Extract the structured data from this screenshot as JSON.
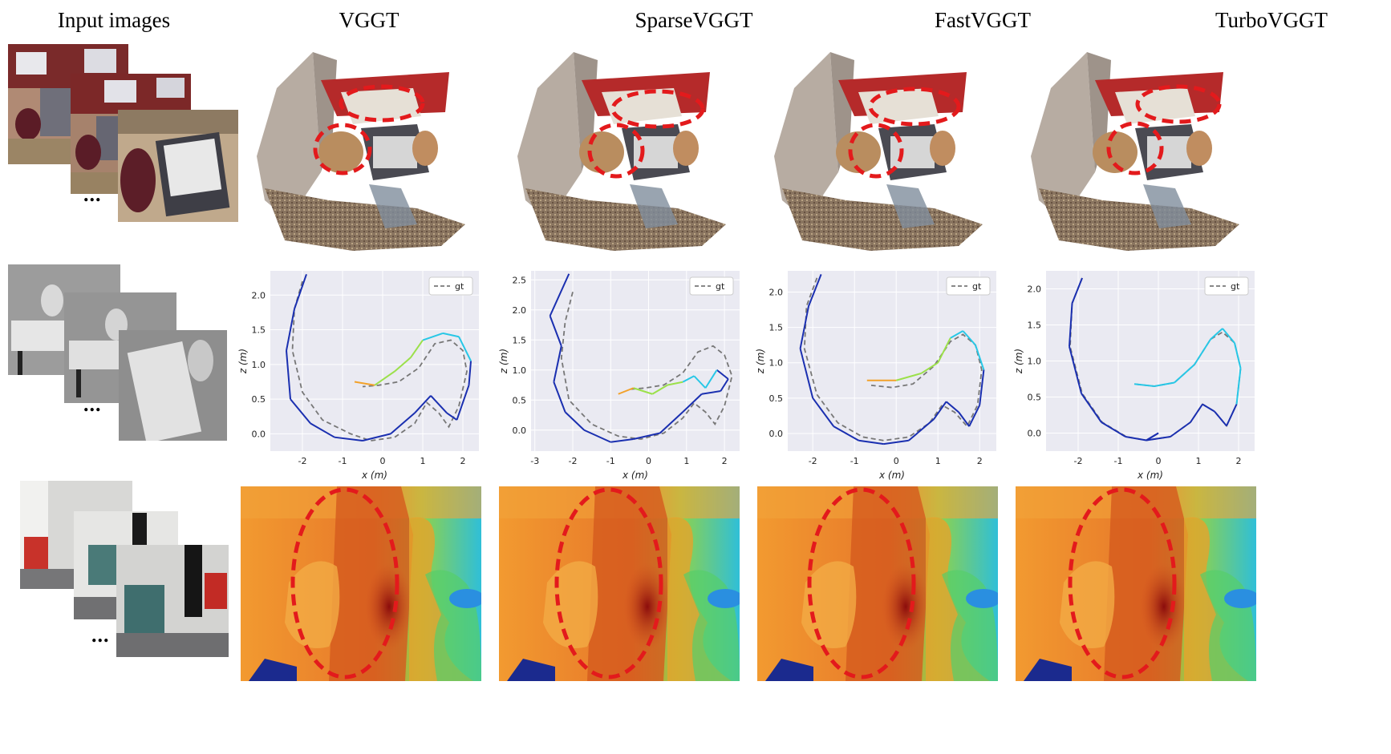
{
  "columns": {
    "input": "Input images",
    "vggt": "VGGT",
    "sparse": "SparseVGGT",
    "fast": "FastVGGT",
    "turbo": "TurboVGGT"
  },
  "ellipsis": "...",
  "colors": {
    "annotation": "#e31a1c",
    "plot_bg": "#eaeaf2",
    "gt": "#777777"
  },
  "chart_data": [
    {
      "type": "line",
      "method": "VGGT",
      "xlabel": "x (m)",
      "ylabel": "z (m)",
      "xlim": [
        -2.8,
        2.4
      ],
      "ylim": [
        -0.25,
        2.35
      ],
      "xticks": [
        -2,
        -1,
        0,
        1,
        2
      ],
      "yticks": [
        0.0,
        0.5,
        1.0,
        1.5,
        2.0
      ],
      "legend": "top-right",
      "grid": true,
      "series": [
        {
          "name": "gt",
          "style": "dashed",
          "x": [
            -2.0,
            -2.2,
            -2.25,
            -2.0,
            -1.5,
            -0.8,
            -0.3,
            0.3,
            0.8,
            1.1,
            1.4,
            1.65,
            1.9,
            2.1,
            2.0,
            1.7,
            1.3,
            0.9,
            0.4,
            -0.1,
            -0.5
          ],
          "y": [
            2.2,
            1.8,
            1.2,
            0.6,
            0.2,
            0.0,
            -0.1,
            -0.05,
            0.15,
            0.45,
            0.3,
            0.1,
            0.4,
            0.9,
            1.2,
            1.35,
            1.3,
            0.95,
            0.75,
            0.7,
            0.68
          ]
        },
        {
          "style": "colored",
          "x": [
            -1.9,
            -2.2,
            -2.4,
            -2.3,
            -1.8,
            -1.2,
            -0.5,
            0.2,
            0.8,
            1.2,
            1.6,
            1.85,
            2.15,
            2.2,
            1.9,
            1.5,
            1.0,
            0.7,
            0.3,
            -0.2,
            -0.7
          ],
          "y": [
            2.3,
            1.8,
            1.2,
            0.5,
            0.15,
            -0.05,
            -0.1,
            0.0,
            0.3,
            0.55,
            0.3,
            0.2,
            0.7,
            1.05,
            1.4,
            1.45,
            1.35,
            1.1,
            0.9,
            0.7,
            0.75
          ]
        }
      ]
    },
    {
      "type": "line",
      "method": "SparseVGGT",
      "xlabel": "x (m)",
      "ylabel": "z (m)",
      "xlim": [
        -3.1,
        2.4
      ],
      "ylim": [
        -0.35,
        2.65
      ],
      "xticks": [
        -3,
        -2,
        -1,
        0,
        1,
        2
      ],
      "yticks": [
        0.0,
        0.5,
        1.0,
        1.5,
        2.0,
        2.5
      ],
      "legend": "top-right",
      "grid": true,
      "series": [
        {
          "name": "gt",
          "style": "dashed",
          "x": [
            -2.0,
            -2.2,
            -2.3,
            -2.1,
            -1.5,
            -0.8,
            -0.2,
            0.4,
            0.9,
            1.2,
            1.5,
            1.75,
            2.0,
            2.2,
            2.0,
            1.7,
            1.3,
            0.9,
            0.4,
            -0.1,
            -0.5
          ],
          "y": [
            2.3,
            1.8,
            1.2,
            0.5,
            0.1,
            -0.1,
            -0.15,
            -0.05,
            0.2,
            0.45,
            0.3,
            0.1,
            0.4,
            0.9,
            1.25,
            1.4,
            1.3,
            0.95,
            0.75,
            0.7,
            0.68
          ]
        },
        {
          "style": "colored",
          "x": [
            -2.1,
            -2.6,
            -2.3,
            -2.5,
            -2.2,
            -1.7,
            -1.0,
            -0.4,
            0.3,
            0.9,
            1.4,
            1.9,
            2.1,
            1.8,
            1.5,
            1.2,
            0.9,
            0.5,
            0.1,
            -0.4,
            -0.8
          ],
          "y": [
            2.6,
            1.9,
            1.4,
            0.8,
            0.3,
            0.0,
            -0.2,
            -0.15,
            -0.05,
            0.3,
            0.6,
            0.65,
            0.85,
            1.0,
            0.7,
            0.9,
            0.8,
            0.75,
            0.6,
            0.7,
            0.6
          ]
        }
      ]
    },
    {
      "type": "line",
      "method": "FastVGGT",
      "xlabel": "x (m)",
      "ylabel": "z (m)",
      "xlim": [
        -2.6,
        2.4
      ],
      "ylim": [
        -0.25,
        2.3
      ],
      "xticks": [
        -2,
        -1,
        0,
        1,
        2
      ],
      "yticks": [
        0.0,
        0.5,
        1.0,
        1.5,
        2.0
      ],
      "legend": "top-right",
      "grid": true,
      "series": [
        {
          "name": "gt",
          "style": "dashed",
          "x": [
            -1.9,
            -2.15,
            -2.2,
            -1.9,
            -1.4,
            -0.8,
            -0.3,
            0.3,
            0.8,
            1.1,
            1.4,
            1.7,
            1.95,
            2.05,
            1.9,
            1.6,
            1.3,
            0.9,
            0.4,
            -0.1,
            -0.6
          ],
          "y": [
            2.2,
            1.8,
            1.2,
            0.55,
            0.15,
            -0.05,
            -0.1,
            -0.05,
            0.15,
            0.4,
            0.3,
            0.1,
            0.4,
            0.9,
            1.25,
            1.4,
            1.3,
            0.95,
            0.7,
            0.65,
            0.68
          ]
        },
        {
          "style": "colored",
          "x": [
            -1.8,
            -2.1,
            -2.3,
            -2.0,
            -1.5,
            -0.9,
            -0.3,
            0.3,
            0.9,
            1.2,
            1.5,
            1.75,
            2.0,
            2.1,
            1.9,
            1.6,
            1.3,
            1.0,
            0.6,
            0.0,
            -0.7
          ],
          "y": [
            2.25,
            1.8,
            1.2,
            0.5,
            0.1,
            -0.1,
            -0.15,
            -0.1,
            0.2,
            0.45,
            0.3,
            0.1,
            0.4,
            0.9,
            1.25,
            1.45,
            1.35,
            1.0,
            0.85,
            0.75,
            0.75
          ]
        }
      ]
    },
    {
      "type": "line",
      "method": "TurboVGGT",
      "xlabel": "x (m)",
      "ylabel": "z (m)",
      "xlim": [
        -2.8,
        2.4
      ],
      "ylim": [
        -0.25,
        2.25
      ],
      "xticks": [
        -2,
        -1,
        0,
        1,
        2
      ],
      "yticks": [
        0.0,
        0.5,
        1.0,
        1.5,
        2.0
      ],
      "legend": "top-right",
      "grid": true,
      "series": [
        {
          "name": "gt",
          "style": "dashed",
          "x": [
            -1.9,
            -2.15,
            -2.2,
            -1.9,
            -1.4,
            -0.8,
            -0.3,
            0.3,
            0.8,
            1.1,
            1.4,
            1.7,
            1.95,
            2.05,
            1.9,
            1.6,
            1.3,
            0.9,
            0.4,
            -0.1,
            -0.6
          ],
          "y": [
            2.15,
            1.8,
            1.2,
            0.55,
            0.15,
            -0.05,
            -0.1,
            -0.05,
            0.15,
            0.4,
            0.3,
            0.1,
            0.4,
            0.9,
            1.25,
            1.4,
            1.3,
            0.95,
            0.7,
            0.65,
            0.68
          ]
        },
        {
          "style": "colored",
          "x": [
            -1.9,
            -2.15,
            -2.22,
            -1.92,
            -1.42,
            -0.82,
            -0.3,
            0.0,
            -0.3,
            0.3,
            0.8,
            1.1,
            1.4,
            1.7,
            1.95,
            2.05,
            1.9,
            1.6,
            1.3,
            0.9,
            0.4,
            -0.1,
            -0.6
          ],
          "y": [
            2.15,
            1.8,
            1.2,
            0.55,
            0.15,
            -0.05,
            -0.1,
            0.0,
            -0.1,
            -0.05,
            0.15,
            0.4,
            0.3,
            0.1,
            0.4,
            0.9,
            1.25,
            1.45,
            1.3,
            0.95,
            0.7,
            0.65,
            0.68
          ]
        }
      ]
    }
  ]
}
